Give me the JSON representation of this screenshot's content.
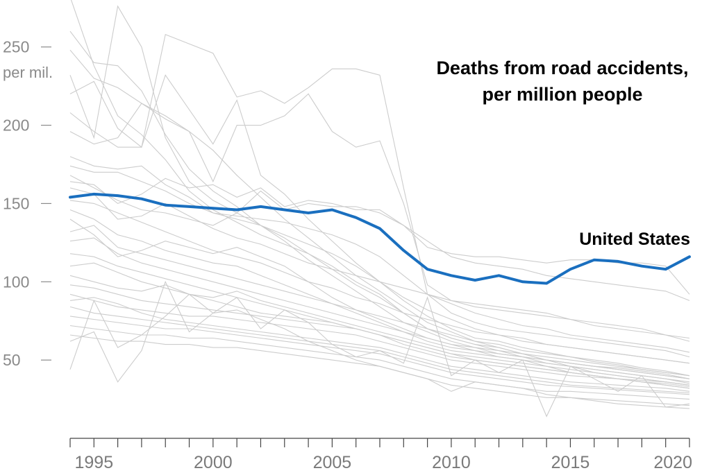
{
  "chart_data": {
    "type": "line",
    "title_lines": [
      "Deaths from road accidents,",
      "per million people"
    ],
    "y_unit_label": "per mil.",
    "ylim": [
      0,
      280
    ],
    "xlim": [
      1994,
      2020
    ],
    "y_ticks": [
      {
        "value": 250,
        "label": "250"
      },
      {
        "value": 200,
        "label": "200"
      },
      {
        "value": 150,
        "label": "150"
      },
      {
        "value": 100,
        "label": "100"
      },
      {
        "value": 50,
        "label": "50"
      }
    ],
    "x_ticks": [
      {
        "value": 1995,
        "label": "1995"
      },
      {
        "value": 2000,
        "label": "2000"
      },
      {
        "value": 2005,
        "label": "2005"
      },
      {
        "value": 2010,
        "label": "2010"
      },
      {
        "value": 2015,
        "label": "2015"
      },
      {
        "value": 2020,
        "label": "2020"
      }
    ],
    "x": [
      1994,
      1995,
      1996,
      1997,
      1998,
      1999,
      2000,
      2001,
      2002,
      2003,
      2004,
      2005,
      2006,
      2007,
      2008,
      2009,
      2010,
      2011,
      2012,
      2013,
      2014,
      2015,
      2016,
      2017,
      2018,
      2019,
      2020
    ],
    "highlight": {
      "name": "United States",
      "color": "#1a6fbf",
      "values": [
        154,
        156,
        155,
        153,
        149,
        148,
        147,
        146,
        148,
        146,
        144,
        146,
        141,
        134,
        120,
        108,
        104,
        101,
        104,
        100,
        99,
        108,
        114,
        113,
        110,
        108,
        116
      ]
    },
    "background_color": "#cccccc",
    "background_series": [
      {
        "values": [
          282,
          238,
          206,
          194,
          178,
          158,
          146,
          138,
          130,
          124,
          118,
          110,
          100,
          92,
          80,
          70,
          64,
          60,
          56,
          52,
          50,
          48,
          46,
          45,
          43,
          41,
          38
        ]
      },
      {
        "values": [
          260,
          240,
          238,
          222,
          194,
          172,
          158,
          148,
          136,
          126,
          114,
          104,
          94,
          84,
          74,
          68,
          62,
          58,
          54,
          52,
          48,
          46,
          44,
          42,
          40,
          38,
          35
        ]
      },
      {
        "values": [
          248,
          230,
          224,
          214,
          206,
          196,
          184,
          168,
          154,
          140,
          128,
          116,
          104,
          94,
          84,
          74,
          68,
          62,
          60,
          56,
          54,
          52,
          49,
          47,
          44,
          42,
          40
        ]
      },
      {
        "values": [
          232,
          192,
          276,
          250,
          192,
          164,
          152,
          144,
          136,
          128,
          118,
          108,
          98,
          90,
          80,
          70,
          64,
          60,
          58,
          54,
          50,
          48,
          46,
          44,
          42,
          40,
          38
        ]
      },
      {
        "values": [
          220,
          228,
          198,
          186,
          232,
          210,
          188,
          216,
          168,
          156,
          140,
          126,
          112,
          100,
          88,
          78,
          70,
          64,
          62,
          58,
          55,
          52,
          50,
          48,
          45,
          43,
          40
        ]
      },
      {
        "values": [
          208,
          196,
          186,
          186,
          258,
          252,
          246,
          218,
          222,
          214,
          224,
          236,
          236,
          232,
          160,
          92,
          80,
          74,
          70,
          68,
          66,
          64,
          62,
          60,
          58,
          56,
          52
        ]
      },
      {
        "values": [
          196,
          188,
          192,
          214,
          204,
          196,
          164,
          200,
          200,
          206,
          220,
          196,
          186,
          190,
          150,
          98,
          88,
          84,
          82,
          80,
          78,
          76,
          74,
          72,
          70,
          66,
          62
        ]
      },
      {
        "values": [
          180,
          174,
          172,
          174,
          162,
          154,
          144,
          142,
          140,
          138,
          134,
          130,
          124,
          116,
          104,
          92,
          86,
          80,
          76,
          72,
          70,
          66,
          64,
          62,
          60,
          58,
          55
        ]
      },
      {
        "values": [
          174,
          170,
          170,
          164,
          158,
          150,
          144,
          140,
          136,
          130,
          124,
          118,
          110,
          100,
          90,
          82,
          76,
          70,
          66,
          62,
          60,
          58,
          56,
          54,
          52,
          50,
          48
        ]
      },
      {
        "values": [
          168,
          160,
          152,
          146,
          144,
          140,
          136,
          144,
          158,
          146,
          150,
          148,
          148,
          144,
          136,
          122,
          118,
          116,
          116,
          114,
          112,
          114,
          114,
          112,
          112,
          110,
          92
        ]
      },
      {
        "values": [
          164,
          162,
          150,
          156,
          166,
          160,
          162,
          154,
          160,
          148,
          152,
          150,
          146,
          146,
          136,
          126,
          116,
          112,
          110,
          108,
          104,
          102,
          100,
          98,
          96,
          94,
          88
        ]
      },
      {
        "values": [
          160,
          156,
          140,
          142,
          150,
          142,
          134,
          128,
          124,
          118,
          112,
          108,
          104,
          100,
          96,
          92,
          88,
          86,
          84,
          82,
          80,
          76,
          72,
          70,
          68,
          66,
          64
        ]
      },
      {
        "values": [
          152,
          150,
          144,
          138,
          132,
          126,
          120,
          116,
          112,
          106,
          100,
          96,
          90,
          86,
          80,
          76,
          72,
          68,
          66,
          64,
          60,
          58,
          56,
          54,
          52,
          50,
          48
        ]
      },
      {
        "values": [
          146,
          140,
          130,
          126,
          120,
          116,
          112,
          110,
          104,
          98,
          92,
          86,
          80,
          74,
          68,
          62,
          58,
          56,
          54,
          52,
          50,
          48,
          46,
          44,
          42,
          40,
          38
        ]
      },
      {
        "values": [
          140,
          130,
          116,
          120,
          126,
          122,
          118,
          122,
          116,
          110,
          100,
          90,
          82,
          76,
          70,
          64,
          60,
          58,
          56,
          54,
          52,
          50,
          48,
          46,
          44,
          42,
          40
        ]
      },
      {
        "values": [
          132,
          136,
          122,
          118,
          114,
          110,
          106,
          102,
          98,
          94,
          90,
          86,
          82,
          78,
          74,
          70,
          66,
          62,
          58,
          54,
          50,
          46,
          42,
          40,
          38,
          36,
          34
        ]
      },
      {
        "values": [
          126,
          128,
          118,
          112,
          108,
          104,
          100,
          96,
          92,
          88,
          84,
          80,
          76,
          72,
          68,
          64,
          60,
          56,
          52,
          50,
          46,
          42,
          40,
          38,
          36,
          34,
          32
        ]
      },
      {
        "values": [
          118,
          116,
          110,
          106,
          102,
          98,
          94,
          90,
          86,
          82,
          78,
          74,
          70,
          66,
          62,
          58,
          54,
          50,
          48,
          46,
          44,
          42,
          40,
          38,
          36,
          34,
          32
        ]
      },
      {
        "values": [
          110,
          112,
          106,
          100,
          96,
          92,
          88,
          84,
          80,
          78,
          76,
          74,
          70,
          66,
          62,
          58,
          54,
          52,
          50,
          48,
          46,
          44,
          42,
          40,
          38,
          36,
          34
        ]
      },
      {
        "values": [
          104,
          100,
          96,
          94,
          98,
          92,
          90,
          94,
          88,
          84,
          80,
          76,
          72,
          68,
          64,
          60,
          56,
          54,
          52,
          50,
          48,
          46,
          44,
          42,
          40,
          38,
          36
        ]
      },
      {
        "values": [
          98,
          96,
          92,
          88,
          86,
          84,
          82,
          80,
          78,
          76,
          74,
          72,
          70,
          66,
          60,
          56,
          52,
          50,
          48,
          46,
          44,
          42,
          40,
          38,
          37,
          36,
          34
        ]
      },
      {
        "values": [
          92,
          88,
          84,
          82,
          80,
          78,
          78,
          76,
          74,
          72,
          70,
          68,
          66,
          62,
          58,
          54,
          50,
          48,
          46,
          44,
          42,
          40,
          39,
          38,
          36,
          35,
          33
        ]
      },
      {
        "values": [
          88,
          90,
          86,
          80,
          76,
          74,
          72,
          70,
          68,
          66,
          64,
          62,
          60,
          58,
          54,
          50,
          46,
          44,
          42,
          40,
          38,
          36,
          35,
          34,
          33,
          32,
          30
        ]
      },
      {
        "values": [
          84,
          80,
          78,
          76,
          74,
          72,
          70,
          68,
          66,
          64,
          62,
          60,
          58,
          56,
          52,
          48,
          44,
          42,
          40,
          38,
          36,
          34,
          33,
          32,
          31,
          30,
          29
        ]
      },
      {
        "values": [
          78,
          76,
          74,
          72,
          70,
          70,
          68,
          66,
          64,
          62,
          60,
          58,
          56,
          54,
          50,
          46,
          42,
          40,
          38,
          36,
          34,
          33,
          32,
          31,
          30,
          29,
          28
        ]
      },
      {
        "values": [
          72,
          70,
          68,
          66,
          66,
          64,
          64,
          62,
          60,
          58,
          56,
          54,
          52,
          50,
          46,
          42,
          38,
          36,
          34,
          32,
          30,
          30,
          29,
          28,
          27,
          26,
          25
        ]
      },
      {
        "values": [
          66,
          64,
          62,
          62,
          60,
          60,
          58,
          58,
          56,
          54,
          52,
          50,
          48,
          46,
          42,
          38,
          34,
          32,
          30,
          28,
          26,
          26,
          25,
          24,
          23,
          22,
          21
        ]
      },
      {
        "values": [
          44,
          88,
          58,
          66,
          78,
          92,
          80,
          82,
          76,
          70,
          62,
          56,
          50,
          46,
          42,
          38,
          30,
          36,
          34,
          32,
          28,
          26,
          24,
          22,
          21,
          20,
          19
        ]
      },
      {
        "values": [
          62,
          68,
          36,
          56,
          100,
          68,
          80,
          90,
          70,
          82,
          74,
          60,
          52,
          56,
          48,
          90,
          40,
          50,
          42,
          50,
          14,
          46,
          38,
          30,
          40,
          20,
          22
        ]
      }
    ]
  }
}
